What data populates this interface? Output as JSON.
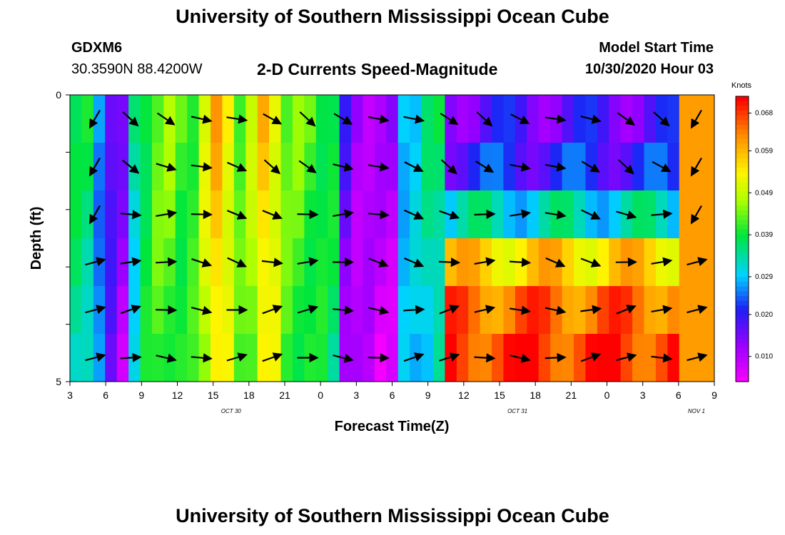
{
  "page": {
    "title_top": "University of Southern Mississippi Ocean Cube",
    "title_bottom": "University of Southern Mississippi Ocean Cube",
    "station_id": "GDXM6",
    "station_coords": "30.3590N 88.4200W",
    "plot_title": "2-D Currents Speed-Magnitude",
    "model_start_label": "Model Start Time",
    "model_start_value": "10/30/2020 Hour 03"
  },
  "chart_data": {
    "type": "heatmap",
    "title": "2-D Currents Speed-Magnitude",
    "xlabel": "Forecast Time(Z)",
    "ylabel": "Depth (ft)",
    "ylim": [
      0,
      5
    ],
    "y_tick_labels": [
      "0",
      "5"
    ],
    "x_tick_labels": [
      "3",
      "6",
      "9",
      "12",
      "15",
      "18",
      "21",
      "0",
      "3",
      "6",
      "9",
      "12",
      "15",
      "18",
      "21",
      "0",
      "3",
      "6",
      "9"
    ],
    "date_labels": [
      {
        "text": "OCT 30",
        "tick_index": 4.5
      },
      {
        "text": "OCT 31",
        "tick_index": 12.5
      },
      {
        "text": "NOV 1",
        "tick_index": 17.5
      }
    ],
    "colorbar": {
      "unit": "Knots",
      "labels": [
        "0.068",
        "0.059",
        "0.049",
        "0.039",
        "0.029",
        "0.020",
        "0.010"
      ],
      "vmin": 0.004,
      "vmax": 0.072
    },
    "vector_arrows": "black arrows indicate current direction at each depth level",
    "depth_levels": 6,
    "time_steps": 55
  }
}
